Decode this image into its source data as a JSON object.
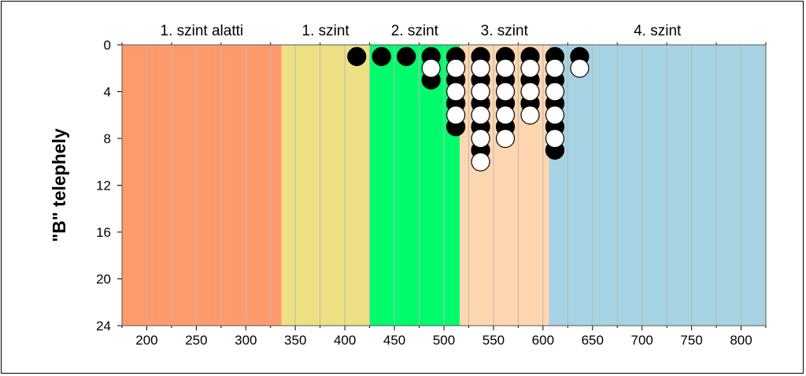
{
  "chart_data": {
    "type": "scatter",
    "title": "",
    "xlabel": "",
    "ylabel": "\"B\" telephely",
    "xlim": [
      175,
      825
    ],
    "ylim": [
      24,
      0
    ],
    "y_inverted": true,
    "x_ticks": [
      200,
      250,
      300,
      350,
      400,
      450,
      500,
      550,
      600,
      650,
      700,
      750,
      800
    ],
    "y_ticks": [
      0,
      4,
      8,
      12,
      16,
      20,
      24
    ],
    "x_minor_step": 25,
    "grid": "vertical",
    "bands": [
      {
        "label": "1. szint alatti",
        "from": 175,
        "to": 336,
        "color": "#FF9A6C"
      },
      {
        "label": "1. szint",
        "from": 336,
        "to": 425,
        "color": "#EDE084"
      },
      {
        "label": "2. szint",
        "from": 425,
        "to": 516,
        "color": "#00FB6C"
      },
      {
        "label": "3. szint",
        "from": 516,
        "to": 606,
        "color": "#FFD6B0"
      },
      {
        "label": "4. szint",
        "from": 606,
        "to": 825,
        "color": "#A6D3E3"
      }
    ],
    "marker_colors": {
      "filled": "#000000",
      "open": "#ffffff"
    },
    "series": [
      {
        "marker": "filled-circle",
        "points": [
          [
            412,
            1
          ],
          [
            437,
            1
          ],
          [
            462,
            1
          ],
          [
            487,
            1
          ],
          [
            487,
            3
          ],
          [
            512,
            1
          ],
          [
            512,
            3
          ],
          [
            512,
            5
          ],
          [
            512,
            7
          ],
          [
            537,
            1
          ],
          [
            537,
            3
          ],
          [
            537,
            5
          ],
          [
            537,
            7
          ],
          [
            537,
            9
          ],
          [
            562,
            1
          ],
          [
            562,
            3
          ],
          [
            562,
            5
          ],
          [
            562,
            7
          ],
          [
            587,
            1
          ],
          [
            587,
            3
          ],
          [
            587,
            5
          ],
          [
            612,
            1
          ],
          [
            612,
            3
          ],
          [
            612,
            5
          ],
          [
            612,
            7
          ],
          [
            612,
            9
          ],
          [
            637,
            1
          ]
        ]
      },
      {
        "marker": "open-circle",
        "points": [
          [
            487,
            2
          ],
          [
            512,
            2
          ],
          [
            512,
            4
          ],
          [
            512,
            6
          ],
          [
            537,
            2
          ],
          [
            537,
            4
          ],
          [
            537,
            6
          ],
          [
            537,
            8
          ],
          [
            537,
            10
          ],
          [
            562,
            2
          ],
          [
            562,
            4
          ],
          [
            562,
            6
          ],
          [
            562,
            8
          ],
          [
            587,
            2
          ],
          [
            587,
            4
          ],
          [
            587,
            6
          ],
          [
            612,
            2
          ],
          [
            612,
            4
          ],
          [
            612,
            6
          ],
          [
            612,
            8
          ],
          [
            637,
            2
          ]
        ]
      }
    ]
  }
}
